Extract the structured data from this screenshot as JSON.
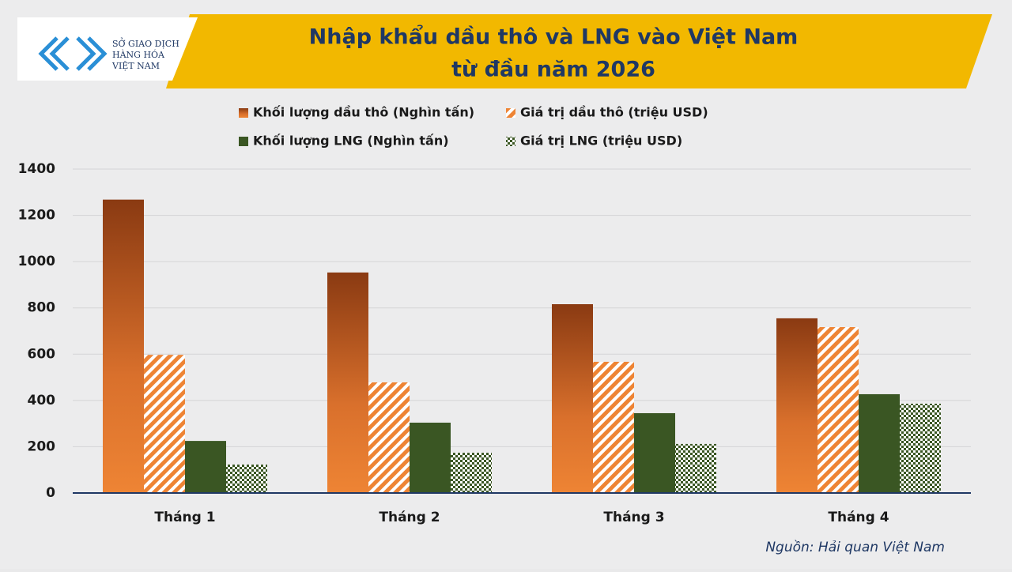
{
  "logo": [
    "SỞ GIAO DỊCH",
    "HÀNG HÓA",
    "VIỆT NAM"
  ],
  "chart_data": {
    "type": "bar",
    "title": [
      "Nhập khẩu dầu thô và LNG vào Việt Nam",
      "từ đầu năm 2026"
    ],
    "categories": [
      "Tháng 1",
      "Tháng 2",
      "Tháng 3",
      "Tháng 4"
    ],
    "series": [
      {
        "name": "Khối lượng dầu thô (Nghìn tấn)",
        "color": "#ee8434",
        "pattern": "gradient",
        "values": [
          1268,
          953,
          816,
          755
        ]
      },
      {
        "name": "Giá trị dầu thô (triệu USD)",
        "color": "#ee8434",
        "pattern": "stripes",
        "values": [
          597,
          478,
          567,
          717
        ]
      },
      {
        "name": "Khối lượng LNG (Nghìn tấn)",
        "color": "#3a5623",
        "pattern": "solid",
        "values": [
          225,
          304,
          345,
          427
        ]
      },
      {
        "name": "Giá trị LNG (triệu USD)",
        "color": "#3a5623",
        "pattern": "checker",
        "values": [
          123,
          174,
          212,
          386
        ]
      }
    ],
    "ylim": [
      0,
      1400
    ],
    "yticks": [
      0,
      200,
      400,
      600,
      800,
      1000,
      1200,
      1400
    ],
    "grid": true,
    "source": "Nguồn: Hải quan Việt Nam"
  }
}
